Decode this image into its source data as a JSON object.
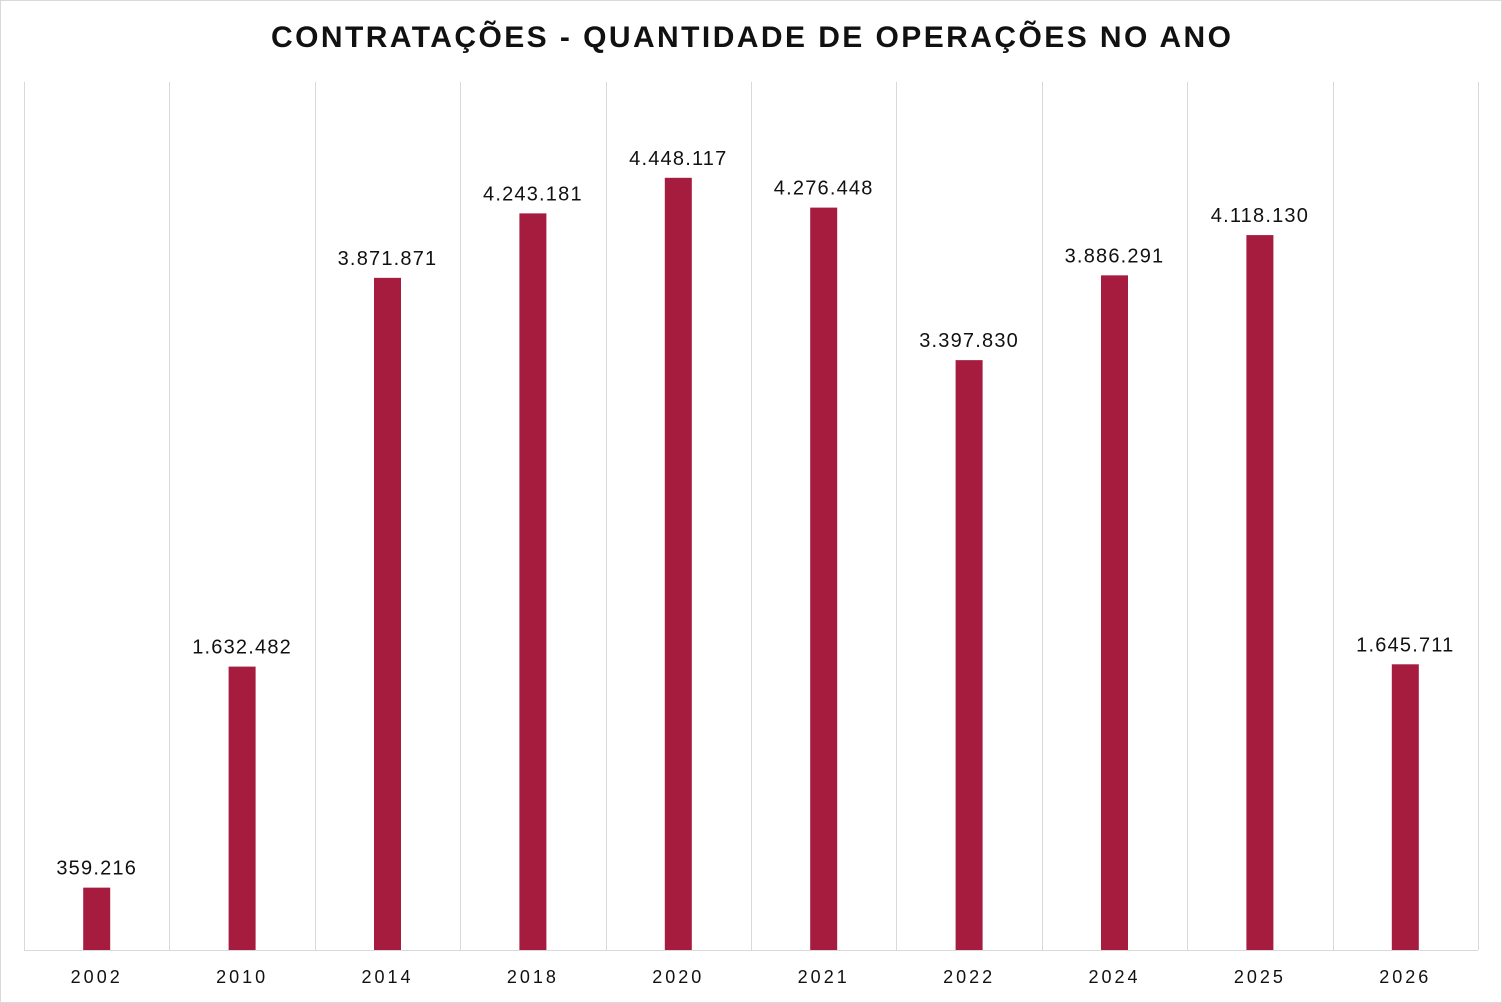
{
  "chart_data": {
    "type": "bar",
    "title": "CONTRATAÇÕES - QUANTIDADE DE OPERAÇÕES NO ANO",
    "xlabel": "",
    "ylabel": "",
    "categories": [
      "2002",
      "2010",
      "2014",
      "2018",
      "2020",
      "2021",
      "2022",
      "2024",
      "2025",
      "2026"
    ],
    "values": [
      359216,
      1632482,
      3871871,
      4243181,
      4448117,
      4276448,
      3397830,
      3886291,
      4118130,
      1645711
    ],
    "ylim": [
      0,
      5000000
    ],
    "grid": "vertical",
    "legend": "none",
    "data_labels": true,
    "colors": {
      "bar": "#a51c3f",
      "grid": "#d9d9d9",
      "border": "#d9d9d9",
      "text": "#111111"
    }
  }
}
